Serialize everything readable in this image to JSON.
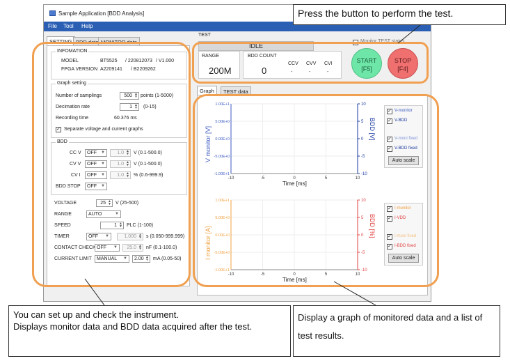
{
  "window": {
    "title": "Sample Application [BDD Analysis]"
  },
  "menu": [
    "File",
    "Tool",
    "Help"
  ],
  "tabs": [
    "SETTING",
    "BDD data",
    "MONITOR data"
  ],
  "info": {
    "header": "INFOMATION",
    "model_label": "MODEL",
    "model_value": "BT5525",
    "model_serial": "/ 220812073",
    "model_version": "/ V1.000",
    "fpga_label": "FPGA VERSION",
    "fpga_value": "A2209141",
    "fpga_value2": "/ B2209262"
  },
  "graph_setting": {
    "header": "Graph setting",
    "samplings_label": "Number of samplings",
    "samplings_value": "500",
    "samplings_range": "points (1-5000)",
    "decimation_label": "Decimation rate",
    "decimation_value": "1",
    "decimation_range": "(0-15)",
    "recording_label": "Recording time",
    "recording_value": "60.376 ms",
    "separate_label": "Separate voltage and current graphs"
  },
  "bdd": {
    "header": "BDD",
    "rows": [
      {
        "label": "CC V",
        "mode": "OFF",
        "value": "1.0",
        "unit": "V (0.1-500.0)"
      },
      {
        "label": "CV V",
        "mode": "OFF",
        "value": "1.0",
        "unit": "V (0.1-500.0)"
      },
      {
        "label": "CV I",
        "mode": "OFF",
        "value": "1.0",
        "unit": "% (0.6-999.9)"
      }
    ],
    "stop_label": "BDD STOP",
    "stop_value": "OFF"
  },
  "settings": {
    "voltage_label": "VOLTAGE",
    "voltage_value": "25",
    "voltage_range": "V (25-500)",
    "range_label": "RANGE",
    "range_value": "AUTO",
    "speed_label": "SPEED",
    "speed_value": "1",
    "speed_range": "PLC (1-100)",
    "timer_label": "TIMER",
    "timer_mode": "OFF",
    "timer_value": "1.000",
    "timer_range": "s (0.050-999.999)",
    "contact_label": "CONTACT CHECK",
    "contact_mode": "OFF",
    "contact_value": "25.0",
    "contact_range": "nF (0.1-100.0)",
    "climit_label": "CURRENT LIMIT",
    "climit_mode": "MANUAL",
    "climit_value": "2.00",
    "climit_range": "mA (0.05-50)"
  },
  "test": {
    "header": "TEST",
    "status": "IDLE",
    "monitor_status": "Monitor TEST status",
    "range_label": "RANGE",
    "range_value": "200M",
    "bdd_count_label": "BDD COUNT",
    "bdd_count_value": "0",
    "ccv_label": "CCV",
    "cvv_label": "CVV",
    "cvi_label": "CVI",
    "ccv_value": "-",
    "cvv_value": "-",
    "cvi_value": "-",
    "start_label": "START",
    "start_key": "[F5]",
    "stop_label": "STOP",
    "stop_key": "[F4]"
  },
  "graph_tabs": [
    "Graph",
    "TEST data"
  ],
  "chart_data": [
    {
      "type": "line",
      "title": "",
      "xlabel": "Time [ms]",
      "ylabel": "V monitor [V]",
      "y2label": "BDD [V]",
      "xlim": [
        -10,
        10
      ],
      "xticks": [
        "-10",
        "-5",
        "0",
        "5",
        "10"
      ],
      "yticks": [
        "1.00E+1",
        "5.00E+0",
        "0.00E+0",
        "-5.00E+0",
        "-1.00E+1"
      ],
      "y2ticks": [
        "10",
        "5",
        "0",
        "-5",
        "-10"
      ],
      "series": [],
      "legend": [
        "V-monitor",
        "V-BDD",
        "V-moni fixed",
        "V-BDD fixed"
      ],
      "legend_checked": [
        true,
        true,
        true,
        true
      ],
      "button": "Auto scale",
      "colors": {
        "axis": "#3c5bc0",
        "axis2": "#1a3aa0"
      }
    },
    {
      "type": "line",
      "title": "",
      "xlabel": "Time [ms]",
      "ylabel": "I monitor [A]",
      "y2label": "BDD [%]",
      "xlim": [
        -10,
        10
      ],
      "xticks": [
        "-10",
        "-5",
        "0",
        "5",
        "10"
      ],
      "yticks": [
        "1.00E+1",
        "5.00E+0",
        "0.00E+0",
        "-5.00E+0",
        "-1.00E+1"
      ],
      "y2ticks": [
        "10",
        "5",
        "0",
        "-5",
        "-10"
      ],
      "series": [],
      "legend": [
        "I-monitor",
        "I-VDD",
        "I-moni fixed",
        "I-BDD fixed"
      ],
      "legend_checked": [
        true,
        true,
        true,
        true
      ],
      "button": "Auto scale",
      "colors": {
        "axis": "#f0a040",
        "axis2": "#e04040"
      }
    }
  ],
  "callouts": {
    "top": "Press the button to perform the test.",
    "left": "You can set up and check the instrument.\nDisplays monitor data and BDD data acquired after the test.",
    "right": "Display a graph of monitored data and a list of test results."
  },
  "colors": {
    "orange": "#f0a050",
    "menu": "#2b5fb4",
    "start": "#6ee6a8",
    "stop": "#f07070"
  }
}
